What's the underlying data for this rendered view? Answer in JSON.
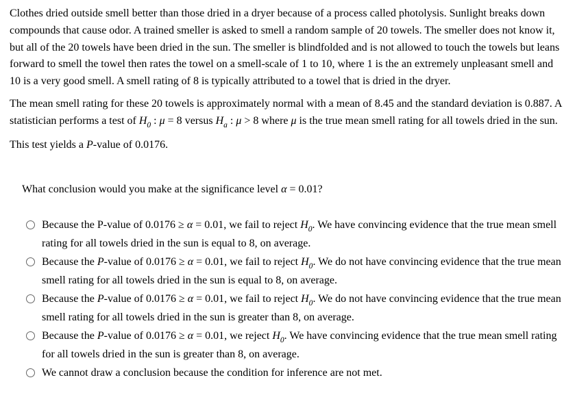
{
  "paragraphs": {
    "p1": "Clothes dried outside smell better than those dried in a dryer because of a process called photolysis. Sunlight breaks down compounds that cause odor. A trained smeller is asked to smell a random sample of 20 towels. The smeller does not know it, but all of the 20 towels have been dried in the sun. The smeller is blindfolded and is not allowed to touch the towels but leans forward to smell the towel then rates the towel on a smell-scale of 1 to 10, where 1 is the an extremely unpleasant smell and 10 is a very good smell. A smell rating of 8 is typically attributed to a towel that is dried in the dryer.",
    "p2a": "The mean smell rating for these 20 towels is approximately normal with a mean of 8.45 and the standard deviation is 0.887. A statistician performs a test of ",
    "p2b": " versus ",
    "p2c": " where ",
    "p2d": " is the true mean smell rating for all towels dried in the sun.",
    "p3a": "This test yields a ",
    "p3b": "-value of 0.0176."
  },
  "hypotheses": {
    "H0_label": "H",
    "H0_sub": "0",
    "Ha_label": "H",
    "Ha_sub": "a",
    "mu": "μ",
    "H0_expr": " = 8",
    "Ha_expr": " > 8",
    "colon": " : "
  },
  "question": {
    "prefix": "What conclusion would you make at the significance level ",
    "alpha": "α",
    "alpha_expr": " = 0.01?"
  },
  "choices": {
    "c1a": "Because the P-value of 0.0176 ≥ ",
    "c1b": " = 0.01, we fail to reject ",
    "c1c": ". We have convincing evidence that the true mean smell rating for all towels dried in the sun is equal to 8, on average.",
    "c2a": "Because the ",
    "c2b": "-value of 0.0176 ≥ ",
    "c2c": " = 0.01, we fail to reject ",
    "c2d": ". We do not have convincing evidence that the true mean smell rating for all towels dried in the sun is equal to 8, on average.",
    "c3a": "Because the ",
    "c3b": "-value of 0.0176 ≥ ",
    "c3c": " = 0.01, we fail to reject ",
    "c3d": ". We do not have convincing evidence that the true mean smell rating for all towels dried in the sun is greater than 8, on average.",
    "c4a": "Because the ",
    "c4b": "-value of 0.0176 ≥ ",
    "c4c": " = 0.01, we reject ",
    "c4d": ". We have convincing evidence that the true mean smell rating for all towels dried in the sun is greater than 8, on average.",
    "c5": "We cannot draw a conclusion because the condition for inference are not met."
  },
  "symbols": {
    "P": "P",
    "alpha": "α",
    "H": "H",
    "zero": "0"
  }
}
